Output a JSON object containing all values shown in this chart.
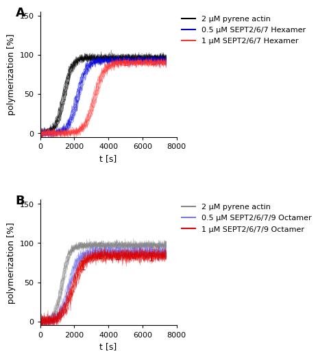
{
  "panel_A": {
    "title": "A",
    "curves": [
      {
        "label": "2 μM pyrene actin",
        "color": "#000000",
        "midpoint": 1400,
        "steepness": 0.0042,
        "plateau": 96,
        "n_reps": 12,
        "noise": 2.5,
        "spread": 120
      },
      {
        "label": "0.5 μM SEPT2/6/7 Hexamer",
        "color": "#0000dd",
        "midpoint": 2200,
        "steepness": 0.0038,
        "plateau": 93,
        "n_reps": 10,
        "noise": 2.5,
        "spread": 130
      },
      {
        "label": "1 μM SEPT2/6/7 Hexamer",
        "color": "#ff3333",
        "midpoint": 3200,
        "steepness": 0.0035,
        "plateau": 90,
        "n_reps": 10,
        "noise": 2.5,
        "spread": 130
      }
    ],
    "eb_xpoints": [
      5000,
      5800,
      6600
    ],
    "xlabel": "t [s]",
    "ylabel": "polymerization [%]",
    "xlim": [
      0,
      7500
    ],
    "ylim": [
      -5,
      155
    ],
    "yticks": [
      0,
      50,
      100,
      150
    ],
    "xticks": [
      0,
      2000,
      4000,
      6000,
      8000
    ]
  },
  "panel_B": {
    "title": "B",
    "curves": [
      {
        "label": "2 μM pyrene actin",
        "color": "#888888",
        "midpoint": 1300,
        "steepness": 0.0048,
        "plateau": 97,
        "n_reps": 12,
        "noise": 2.5,
        "spread": 100
      },
      {
        "label": "0.5 μM SEPT2/6/7/9 Octamer",
        "color": "#7777ee",
        "midpoint": 1700,
        "steepness": 0.0038,
        "plateau": 88,
        "n_reps": 10,
        "noise": 3.5,
        "spread": 120
      },
      {
        "label": "1 μM SEPT2/6/7/9 Octamer",
        "color": "#dd0000",
        "midpoint": 1900,
        "steepness": 0.0032,
        "plateau": 84,
        "n_reps": 10,
        "noise": 4.0,
        "spread": 140
      }
    ],
    "eb_xpoints": [
      2500,
      3500,
      4500,
      5500,
      6500
    ],
    "xlabel": "t [s]",
    "ylabel": "polymerization [%]",
    "xlim": [
      0,
      7500
    ],
    "ylim": [
      -5,
      155
    ],
    "yticks": [
      0,
      50,
      100,
      150
    ],
    "xticks": [
      0,
      2000,
      4000,
      6000,
      8000
    ]
  },
  "background_color": "#ffffff",
  "figure_label_fontsize": 13,
  "axis_label_fontsize": 9,
  "tick_fontsize": 8,
  "legend_fontsize": 8
}
